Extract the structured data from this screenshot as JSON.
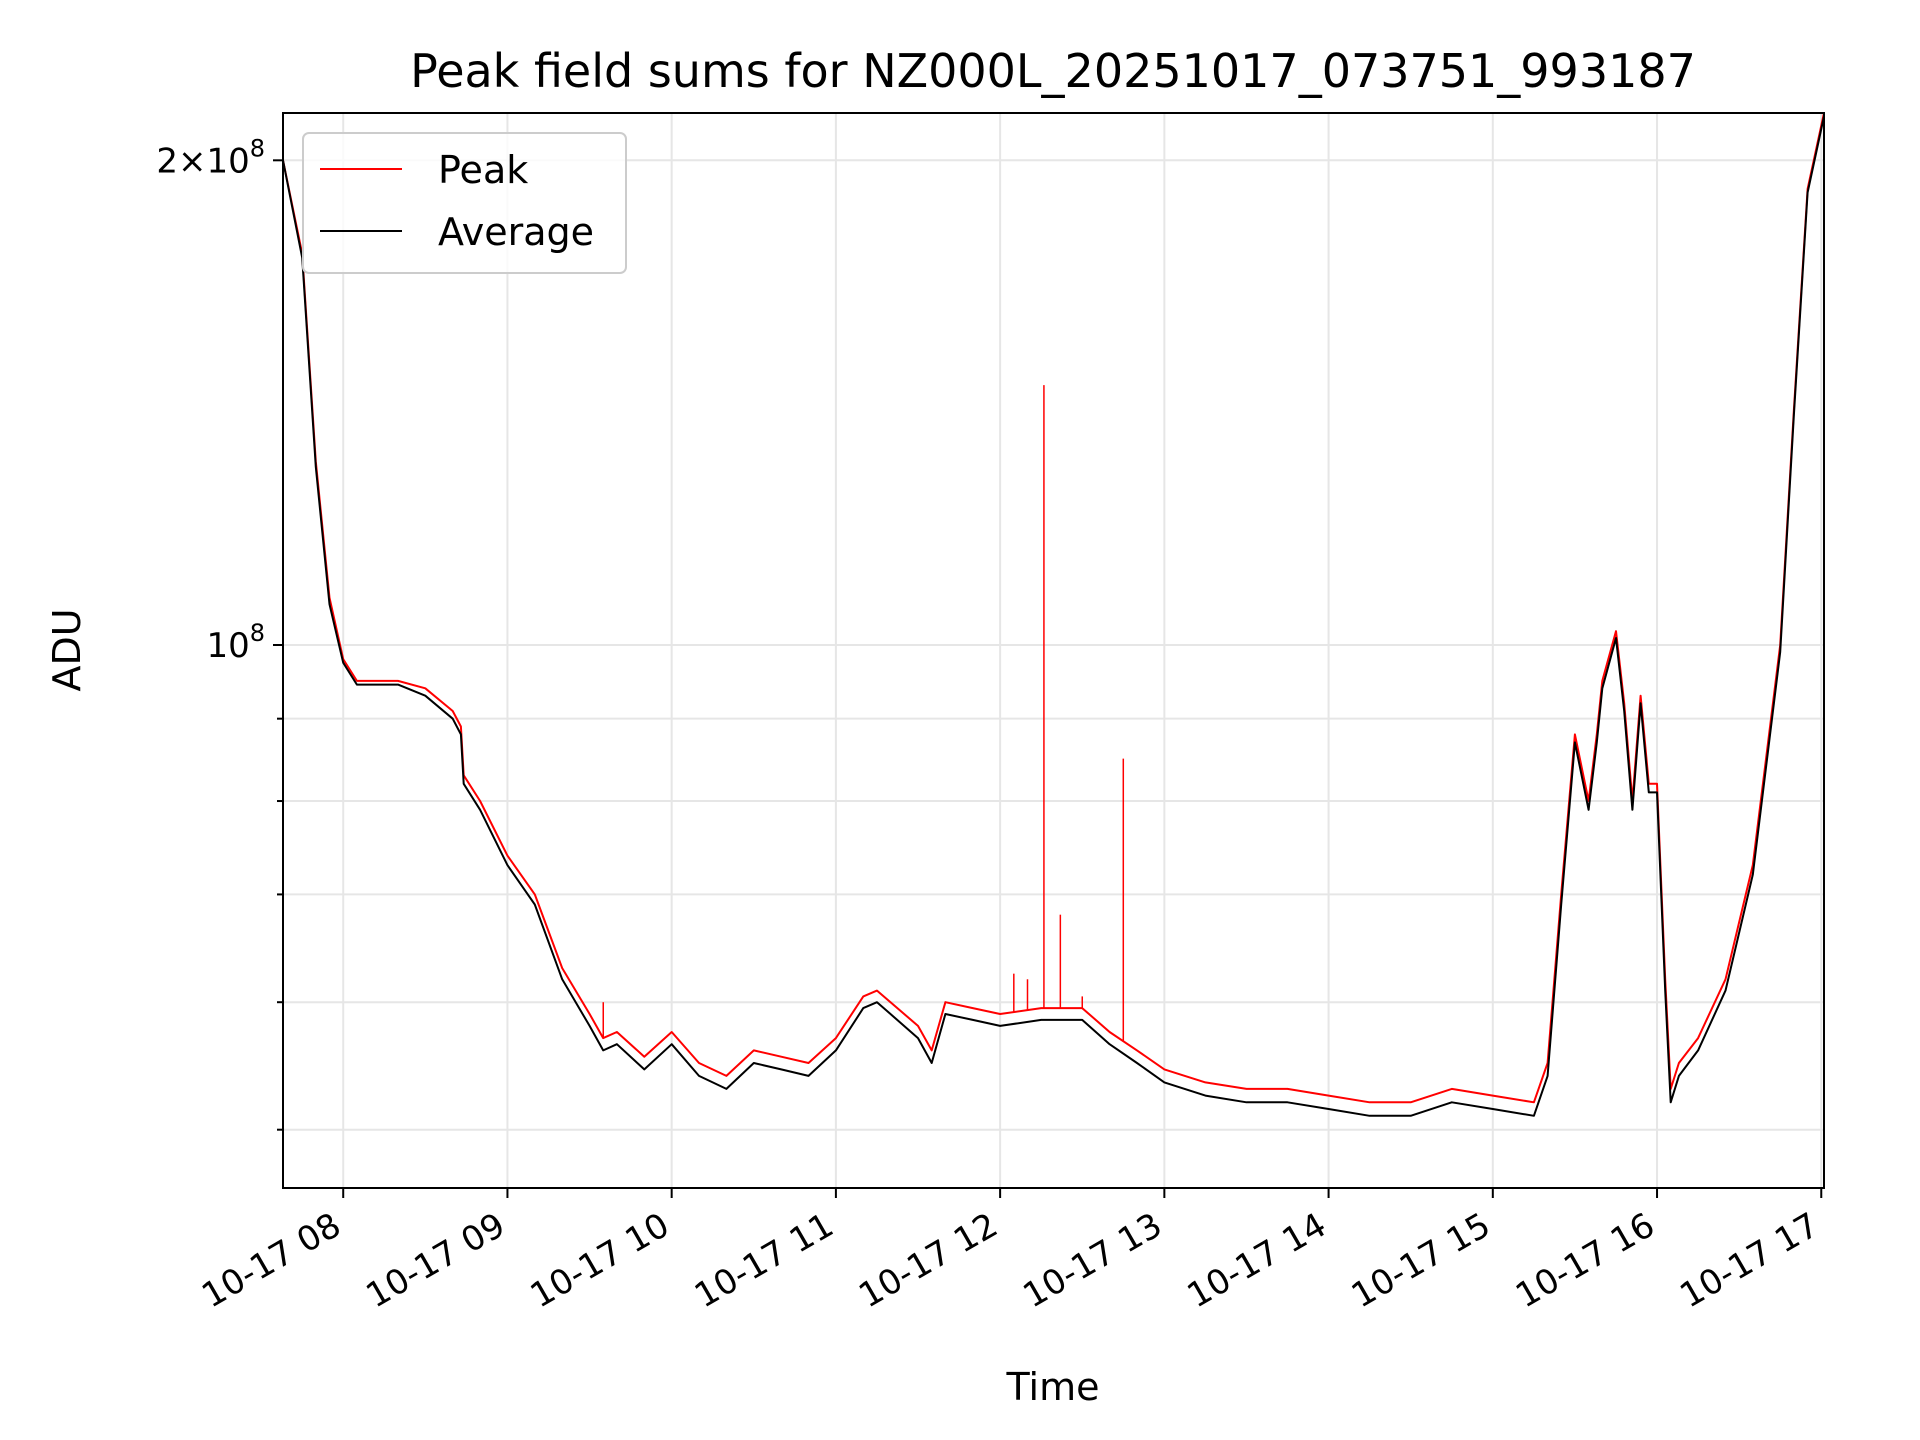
{
  "chart_data": {
    "type": "line",
    "title": "Peak field sums for NZ000L_20251017_073751_993187",
    "xlabel": "Time",
    "ylabel": "ADU",
    "yscale": "log",
    "grid": true,
    "legend_position": "top-left",
    "xlim": [
      "2025-10-17 07:38",
      "2025-10-17 17:01"
    ],
    "ylim": [
      46000000,
      214000000
    ],
    "x_ticks": [
      "10-17 08",
      "10-17 09",
      "10-17 10",
      "10-17 11",
      "10-17 12",
      "10-17 13",
      "10-17 14",
      "10-17 15",
      "10-17 16",
      "10-17 17"
    ],
    "y_ticks": [
      {
        "value": 200000000,
        "base": "2×10",
        "exp": "8"
      },
      {
        "value": 100000000,
        "base": "10",
        "exp": "8"
      }
    ],
    "colors": {
      "Peak": "#ff0000",
      "Average": "#000000"
    },
    "series": [
      {
        "name": "Peak",
        "x": [
          "2025-10-17 07:38",
          "2025-10-17 07:45",
          "2025-10-17 07:50",
          "2025-10-17 07:55",
          "2025-10-17 08:00",
          "2025-10-17 08:05",
          "2025-10-17 08:10",
          "2025-10-17 08:20",
          "2025-10-17 08:30",
          "2025-10-17 08:40",
          "2025-10-17 08:43",
          "2025-10-17 08:44",
          "2025-10-17 08:50",
          "2025-10-17 09:00",
          "2025-10-17 09:10",
          "2025-10-17 09:20",
          "2025-10-17 09:30",
          "2025-10-17 09:35",
          "2025-10-17 09:40",
          "2025-10-17 09:50",
          "2025-10-17 10:00",
          "2025-10-17 10:10",
          "2025-10-17 10:20",
          "2025-10-17 10:30",
          "2025-10-17 10:40",
          "2025-10-17 10:50",
          "2025-10-17 11:00",
          "2025-10-17 11:10",
          "2025-10-17 11:15",
          "2025-10-17 11:30",
          "2025-10-17 11:35",
          "2025-10-17 11:40",
          "2025-10-17 11:50",
          "2025-10-17 12:00",
          "2025-10-17 12:15",
          "2025-10-17 12:30",
          "2025-10-17 12:40",
          "2025-10-17 12:50",
          "2025-10-17 13:00",
          "2025-10-17 13:15",
          "2025-10-17 13:30",
          "2025-10-17 13:45",
          "2025-10-17 14:00",
          "2025-10-17 14:15",
          "2025-10-17 14:30",
          "2025-10-17 14:45",
          "2025-10-17 15:00",
          "2025-10-17 15:15",
          "2025-10-17 15:20",
          "2025-10-17 15:25",
          "2025-10-17 15:30",
          "2025-10-17 15:35",
          "2025-10-17 15:38",
          "2025-10-17 15:40",
          "2025-10-17 15:45",
          "2025-10-17 15:48",
          "2025-10-17 15:51",
          "2025-10-17 15:54",
          "2025-10-17 15:57",
          "2025-10-17 16:00",
          "2025-10-17 16:03",
          "2025-10-17 16:05",
          "2025-10-17 16:08",
          "2025-10-17 16:15",
          "2025-10-17 16:25",
          "2025-10-17 16:35",
          "2025-10-17 16:45",
          "2025-10-17 16:50",
          "2025-10-17 16:55",
          "2025-10-17 17:01"
        ],
        "values": [
          200000000,
          175000000,
          130000000,
          107000000,
          98000000,
          95000000,
          95000000,
          95000000,
          94000000,
          91000000,
          89000000,
          83000000,
          80000000,
          74000000,
          70000000,
          63000000,
          59000000,
          57000000,
          57500000,
          55500000,
          57500000,
          55000000,
          54000000,
          56000000,
          55500000,
          55000000,
          57000000,
          60500000,
          61000000,
          58000000,
          56000000,
          60000000,
          59500000,
          59000000,
          59500000,
          59500000,
          57500000,
          56000000,
          54500000,
          53500000,
          53000000,
          53000000,
          52500000,
          52000000,
          52000000,
          53000000,
          52500000,
          52000000,
          55000000,
          70000000,
          88000000,
          80000000,
          88000000,
          95000000,
          102000000,
          92000000,
          80000000,
          93000000,
          82000000,
          82000000,
          62000000,
          53000000,
          55000000,
          57000000,
          62000000,
          73000000,
          100000000,
          140000000,
          192000000,
          214000000
        ]
      },
      {
        "name": "Average",
        "x": [
          "2025-10-17 07:38",
          "2025-10-17 07:45",
          "2025-10-17 07:50",
          "2025-10-17 07:55",
          "2025-10-17 08:00",
          "2025-10-17 08:05",
          "2025-10-17 08:10",
          "2025-10-17 08:20",
          "2025-10-17 08:30",
          "2025-10-17 08:40",
          "2025-10-17 08:43",
          "2025-10-17 08:44",
          "2025-10-17 08:50",
          "2025-10-17 09:00",
          "2025-10-17 09:10",
          "2025-10-17 09:20",
          "2025-10-17 09:30",
          "2025-10-17 09:35",
          "2025-10-17 09:40",
          "2025-10-17 09:50",
          "2025-10-17 10:00",
          "2025-10-17 10:10",
          "2025-10-17 10:20",
          "2025-10-17 10:30",
          "2025-10-17 10:40",
          "2025-10-17 10:50",
          "2025-10-17 11:00",
          "2025-10-17 11:10",
          "2025-10-17 11:15",
          "2025-10-17 11:30",
          "2025-10-17 11:35",
          "2025-10-17 11:40",
          "2025-10-17 11:50",
          "2025-10-17 12:00",
          "2025-10-17 12:15",
          "2025-10-17 12:30",
          "2025-10-17 12:40",
          "2025-10-17 12:50",
          "2025-10-17 13:00",
          "2025-10-17 13:15",
          "2025-10-17 13:30",
          "2025-10-17 13:45",
          "2025-10-17 14:00",
          "2025-10-17 14:15",
          "2025-10-17 14:30",
          "2025-10-17 14:45",
          "2025-10-17 15:00",
          "2025-10-17 15:15",
          "2025-10-17 15:20",
          "2025-10-17 15:25",
          "2025-10-17 15:30",
          "2025-10-17 15:35",
          "2025-10-17 15:38",
          "2025-10-17 15:40",
          "2025-10-17 15:45",
          "2025-10-17 15:48",
          "2025-10-17 15:51",
          "2025-10-17 15:54",
          "2025-10-17 15:57",
          "2025-10-17 16:00",
          "2025-10-17 16:03",
          "2025-10-17 16:05",
          "2025-10-17 16:08",
          "2025-10-17 16:15",
          "2025-10-17 16:25",
          "2025-10-17 16:35",
          "2025-10-17 16:45",
          "2025-10-17 16:50",
          "2025-10-17 16:55",
          "2025-10-17 17:01"
        ],
        "values": [
          200000000,
          174000000,
          129000000,
          106000000,
          97500000,
          94500000,
          94500000,
          94500000,
          93000000,
          90000000,
          88000000,
          82000000,
          79000000,
          73000000,
          69000000,
          62000000,
          58000000,
          56000000,
          56500000,
          54500000,
          56500000,
          54000000,
          53000000,
          55000000,
          54500000,
          54000000,
          56000000,
          59500000,
          60000000,
          57000000,
          55000000,
          59000000,
          58500000,
          58000000,
          58500000,
          58500000,
          56500000,
          55000000,
          53500000,
          52500000,
          52000000,
          52000000,
          51500000,
          51000000,
          51000000,
          52000000,
          51500000,
          51000000,
          54000000,
          69000000,
          87000000,
          79000000,
          87000000,
          94000000,
          101000000,
          91000000,
          79000000,
          92000000,
          81000000,
          81000000,
          61000000,
          52000000,
          54000000,
          56000000,
          61000000,
          72000000,
          99000000,
          139000000,
          191000000,
          213000000
        ]
      }
    ],
    "spikes": {
      "series": "Peak",
      "x": [
        "2025-10-17 09:35",
        "2025-10-17 12:05",
        "2025-10-17 12:10",
        "2025-10-17 12:16",
        "2025-10-17 12:22",
        "2025-10-17 12:30",
        "2025-10-17 12:45"
      ],
      "values": [
        60000000,
        62500000,
        62000000,
        145000000,
        68000000,
        60500000,
        85000000
      ]
    }
  }
}
